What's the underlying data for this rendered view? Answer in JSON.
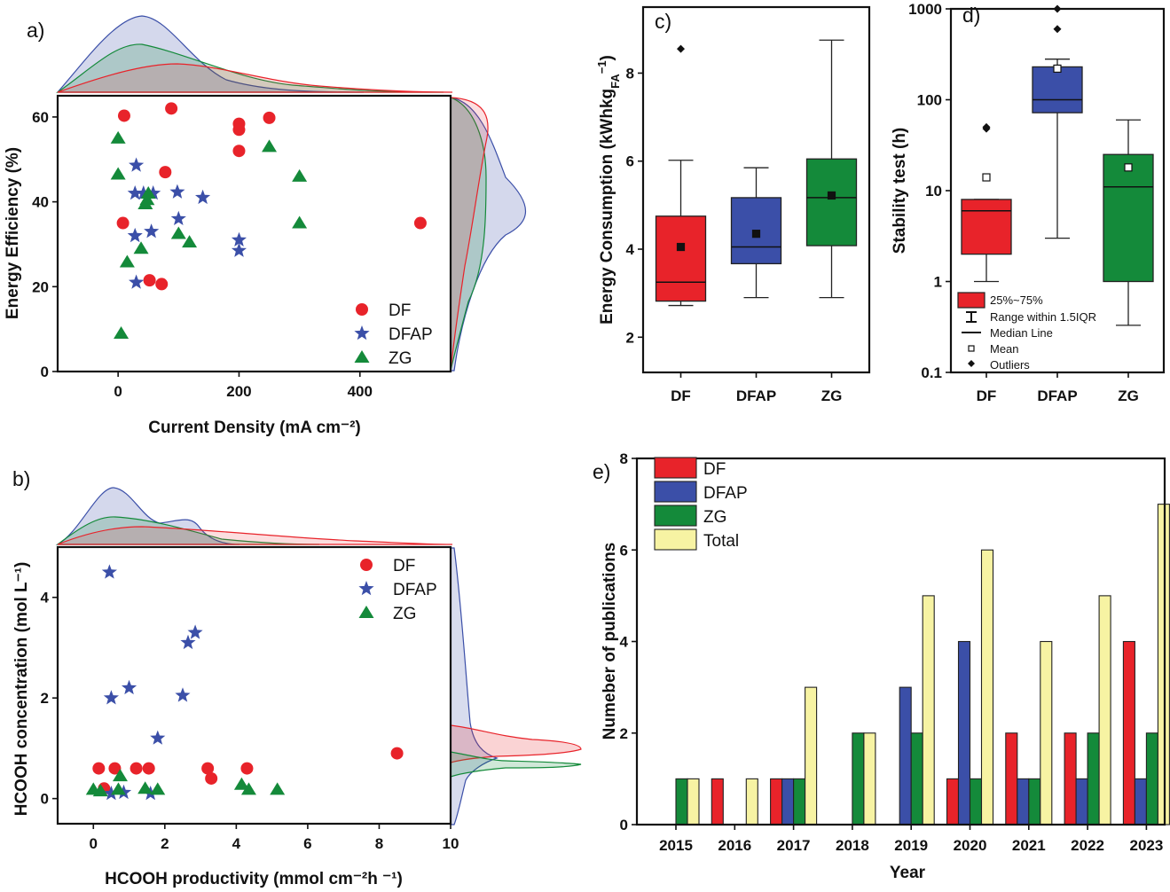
{
  "colors": {
    "DF": "#e8232a",
    "DFAP": "#3b4fa8",
    "ZG": "#148a3a",
    "Total": "#f7f3a3"
  },
  "chart_data": [
    {
      "id": "a",
      "type": "scatter",
      "panel_label": "a)",
      "xlabel": "Current Density (mA cm⁻²)",
      "ylabel": "Energy Efficiency (%)",
      "xlim": [
        -100,
        550
      ],
      "ylim": [
        0,
        65
      ],
      "xticks": [
        "0",
        "200",
        "400"
      ],
      "yticks": [
        "0",
        "20",
        "40",
        "60"
      ],
      "legend": [
        "DF",
        "DFAP",
        "ZG"
      ],
      "series": [
        {
          "name": "DF",
          "points": [
            [
              10,
              60.3
            ],
            [
              88,
              62
            ],
            [
              200,
              58.4
            ],
            [
              200,
              57
            ],
            [
              250,
              59.8
            ],
            [
              200,
              52
            ],
            [
              78,
              47
            ],
            [
              8,
              35
            ],
            [
              52,
              21.5
            ],
            [
              72,
              20.6
            ],
            [
              500,
              35
            ]
          ]
        },
        {
          "name": "DFAP",
          "points": [
            [
              30,
              48.6
            ],
            [
              28,
              42
            ],
            [
              42,
              42
            ],
            [
              58,
              42
            ],
            [
              98,
              42.3
            ],
            [
              100,
              36
            ],
            [
              140,
              41
            ],
            [
              28,
              32
            ],
            [
              55,
              33
            ],
            [
              200,
              31
            ],
            [
              200,
              28.5
            ],
            [
              30,
              21
            ]
          ]
        },
        {
          "name": "ZG",
          "points": [
            [
              0,
              55
            ],
            [
              0,
              46.5
            ],
            [
              50,
              42
            ],
            [
              48,
              40.5
            ],
            [
              45,
              39.5
            ],
            [
              100,
              32.5
            ],
            [
              118,
              30.5
            ],
            [
              38,
              29
            ],
            [
              15,
              25.8
            ],
            [
              5,
              9
            ],
            [
              250,
              53
            ],
            [
              300,
              46
            ],
            [
              300,
              35
            ]
          ]
        }
      ]
    },
    {
      "id": "b",
      "type": "scatter",
      "panel_label": "b)",
      "xlabel": "HCOOH productivity (mmol cm⁻²h ⁻¹)",
      "ylabel": "HCOOH concentration (mol L⁻¹)",
      "xlim": [
        -1,
        10
      ],
      "ylim": [
        -0.5,
        5
      ],
      "xticks": [
        "0",
        "2",
        "4",
        "6",
        "8",
        "10"
      ],
      "yticks": [
        "0",
        "2",
        "4"
      ],
      "legend": [
        "DF",
        "DFAP",
        "ZG"
      ],
      "series": [
        {
          "name": "DF",
          "points": [
            [
              0.15,
              0.6
            ],
            [
              0.3,
              0.2
            ],
            [
              0.6,
              0.6
            ],
            [
              1.2,
              0.6
            ],
            [
              1.55,
              0.6
            ],
            [
              3.2,
              0.6
            ],
            [
              3.3,
              0.4
            ],
            [
              4.3,
              0.6
            ],
            [
              8.5,
              0.9
            ]
          ]
        },
        {
          "name": "DFAP",
          "points": [
            [
              0.45,
              4.5
            ],
            [
              0.5,
              2
            ],
            [
              1.0,
              2.2
            ],
            [
              1.8,
              1.2
            ],
            [
              2.5,
              2.05
            ],
            [
              2.65,
              3.1
            ],
            [
              2.85,
              3.3
            ],
            [
              0.5,
              0.1
            ],
            [
              0.85,
              0.12
            ],
            [
              1.6,
              0.1
            ]
          ]
        },
        {
          "name": "ZG",
          "points": [
            [
              0,
              0.18
            ],
            [
              0.2,
              0.15
            ],
            [
              0.7,
              0.18
            ],
            [
              0.75,
              0.45
            ],
            [
              1.45,
              0.2
            ],
            [
              1.8,
              0.18
            ],
            [
              4.15,
              0.28
            ],
            [
              4.35,
              0.18
            ],
            [
              5.15,
              0.18
            ]
          ]
        }
      ]
    },
    {
      "id": "c",
      "type": "box",
      "panel_label": "c)",
      "ylabel": "Energy Consumption (kWhkg",
      "ylabel_sub": "FA",
      "ylabel_sup": "−1",
      "ylabel_end": ")",
      "ylim": [
        1.2,
        9.5
      ],
      "yticks": [
        "2",
        "4",
        "6",
        "8"
      ],
      "categories": [
        "DF",
        "DFAP",
        "ZG"
      ],
      "boxes": [
        {
          "name": "DF",
          "q1": 2.82,
          "median": 3.25,
          "q3": 4.75,
          "mean": 4.05,
          "whisker_low": 2.72,
          "whisker_high": 6.02,
          "outliers": [
            8.55
          ]
        },
        {
          "name": "DFAP",
          "q1": 3.67,
          "median": 4.05,
          "q3": 5.17,
          "mean": 4.35,
          "whisker_low": 2.9,
          "whisker_high": 5.85,
          "outliers": []
        },
        {
          "name": "ZG",
          "q1": 4.08,
          "median": 5.17,
          "q3": 6.05,
          "mean": 5.22,
          "whisker_low": 2.9,
          "whisker_high": 8.75,
          "outliers": []
        }
      ]
    },
    {
      "id": "d",
      "type": "box",
      "panel_label": "d)",
      "yscale": "log",
      "ylabel": "Stability test (h)",
      "ylim": [
        0.1,
        1000
      ],
      "yticks": [
        "0.1",
        "1",
        "10",
        "100",
        "1000"
      ],
      "categories": [
        "DF",
        "DFAP",
        "ZG"
      ],
      "boxes": [
        {
          "name": "DF",
          "q1": 2,
          "median": 6,
          "q3": 8,
          "mean": 14,
          "whisker_low": 1,
          "whisker_high": 8,
          "outliers": [
            48,
            50
          ]
        },
        {
          "name": "DFAP",
          "q1": 72,
          "median": 100,
          "q3": 230,
          "mean": 220,
          "whisker_low": 3,
          "whisker_high": 280,
          "outliers": [
            600,
            1000
          ]
        },
        {
          "name": "ZG",
          "q1": 1,
          "median": 11,
          "q3": 25,
          "mean": 18,
          "whisker_low": 0.33,
          "whisker_high": 60,
          "outliers": []
        }
      ],
      "legend": [
        "25%~75%",
        "Range within 1.5IQR",
        "Median Line",
        "Mean",
        "Outliers"
      ]
    },
    {
      "id": "e",
      "type": "bar",
      "panel_label": "e)",
      "xlabel": "Year",
      "ylabel": "Numeber of publications",
      "ylim": [
        0,
        8
      ],
      "yticks": [
        "0",
        "2",
        "4",
        "6",
        "8"
      ],
      "categories": [
        "2015",
        "2016",
        "2017",
        "2018",
        "2019",
        "2020",
        "2021",
        "2022",
        "2023"
      ],
      "series": [
        {
          "name": "DF",
          "values": [
            0,
            1,
            1,
            0,
            0,
            1,
            2,
            2,
            4
          ]
        },
        {
          "name": "DFAP",
          "values": [
            0,
            0,
            1,
            0,
            3,
            4,
            1,
            1,
            1
          ]
        },
        {
          "name": "ZG",
          "values": [
            1,
            0,
            1,
            2,
            2,
            1,
            1,
            2,
            2
          ]
        },
        {
          "name": "Total",
          "values": [
            1,
            1,
            3,
            2,
            5,
            6,
            4,
            5,
            7
          ]
        }
      ],
      "legend": [
        "DF",
        "DFAP",
        "ZG",
        "Total"
      ]
    }
  ]
}
